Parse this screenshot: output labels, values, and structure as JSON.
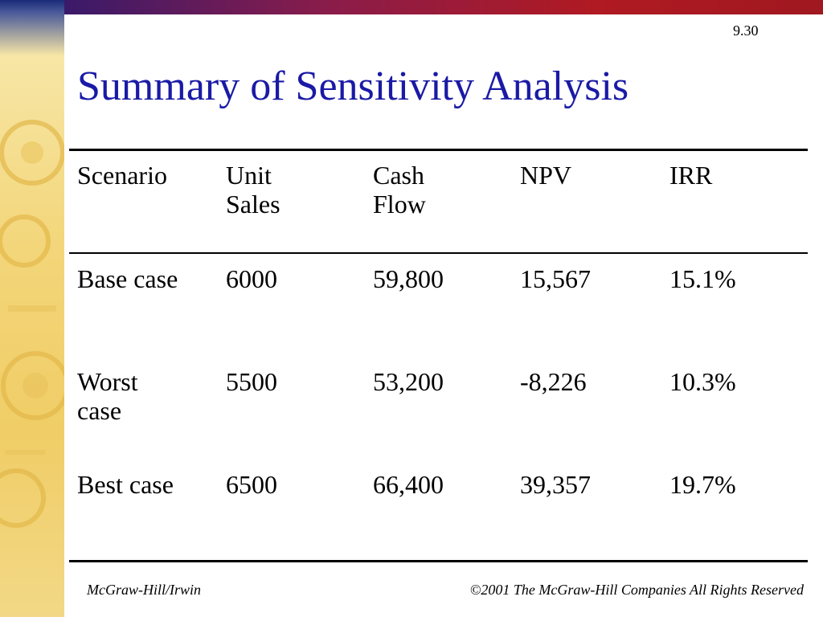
{
  "slide": {
    "number": "9.30",
    "title": "Summary of Sensitivity Analysis"
  },
  "table": {
    "headers": [
      "Scenario",
      "Unit\nSales",
      "Cash\nFlow",
      "NPV",
      "IRR"
    ],
    "rows": [
      [
        "Base case",
        "6000",
        "59,800",
        "15,567",
        "15.1%"
      ],
      [
        "Worst\ncase",
        "5500",
        "53,200",
        "-8,226",
        "10.3%"
      ],
      [
        "Best case",
        "6500",
        "66,400",
        "39,357",
        "19.7%"
      ]
    ]
  },
  "footer": {
    "publisher": "McGraw-Hill/Irwin",
    "copyright": "©2001 The McGraw-Hill Companies All Rights Reserved"
  },
  "colors": {
    "title": "#1a1aa6",
    "top_bar": "#b01a22",
    "side_strip": "#f0cd66"
  }
}
